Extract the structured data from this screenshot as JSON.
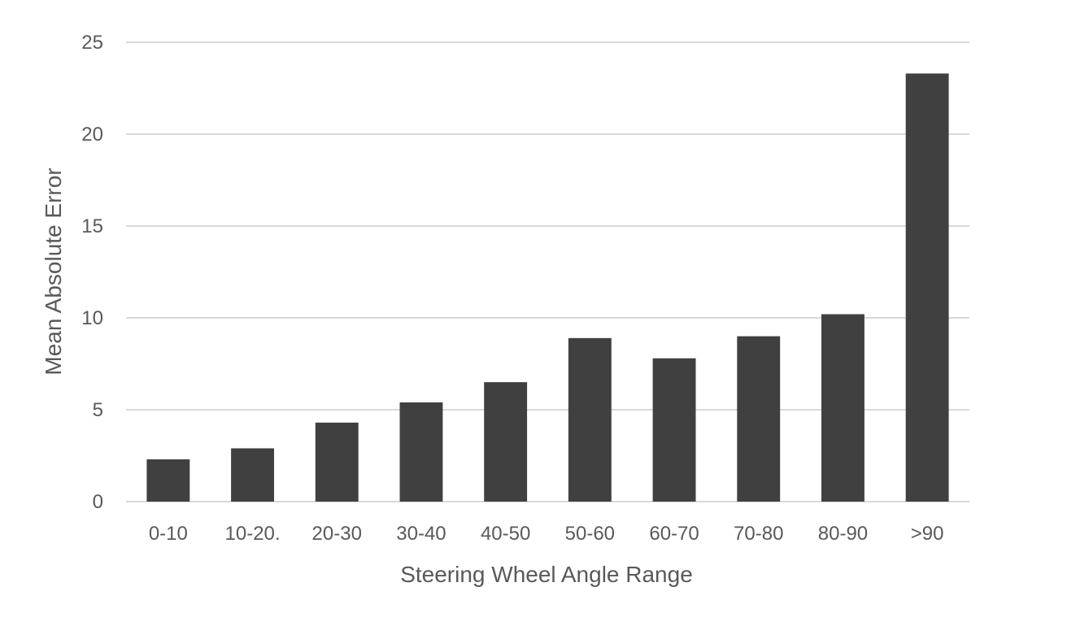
{
  "chart_data": {
    "type": "bar",
    "title": "",
    "xlabel": "Steering Wheel Angle Range",
    "ylabel": "Mean Absolute Error",
    "categories": [
      "0-10",
      "10-20.",
      "20-30",
      "30-40",
      "40-50",
      "50-60",
      "60-70",
      "70-80",
      "80-90",
      ">90"
    ],
    "values": [
      2.3,
      2.9,
      4.3,
      5.4,
      6.5,
      8.9,
      7.8,
      9.0,
      10.2,
      23.3
    ],
    "ylim": [
      0,
      25
    ],
    "yticks": [
      0,
      5,
      10,
      15,
      20,
      25
    ],
    "ytick_labels": [
      "0",
      "5",
      "10",
      "15",
      "20",
      "25"
    ],
    "grid": true,
    "legend": "none",
    "bar_color": "#404040",
    "grid_color": "#d9d9d9",
    "text_color": "#595959"
  }
}
